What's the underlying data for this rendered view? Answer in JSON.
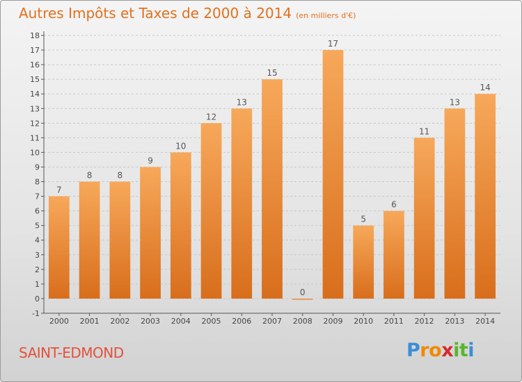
{
  "title": "Autres Impôts et Taxes de 2000 à 2014",
  "unit_note": "(en milliers d'€)",
  "commune": "SAINT-EDMOND",
  "logo": {
    "text": "Proxiti",
    "letters": [
      "P",
      "r",
      "o",
      "x",
      "i",
      "t",
      "i"
    ],
    "colors": [
      "#3a8fd6",
      "#f08a00",
      "#f08a00",
      "#d6282e",
      "#58b62b",
      "#58b62b",
      "#3a8fd6"
    ]
  },
  "colors": {
    "title": "#e2701e",
    "commune": "#e3503a",
    "bar_top": "#f7a85a",
    "bar_bottom": "#d86e1c",
    "axis": "#555555",
    "grid": "#c8c8c8"
  },
  "chart_data": {
    "type": "bar",
    "categories": [
      "2000",
      "2001",
      "2002",
      "2003",
      "2004",
      "2005",
      "2006",
      "2007",
      "2008",
      "2009",
      "2010",
      "2011",
      "2012",
      "2013",
      "2014"
    ],
    "values": [
      7,
      8,
      8,
      9,
      10,
      12,
      13,
      15,
      0,
      17,
      5,
      6,
      11,
      13,
      14
    ],
    "ylim": [
      -1,
      18
    ],
    "yticks": [
      -1,
      0,
      1,
      2,
      3,
      4,
      5,
      6,
      7,
      8,
      9,
      10,
      11,
      12,
      13,
      14,
      15,
      16,
      17,
      18
    ],
    "grid": true
  }
}
